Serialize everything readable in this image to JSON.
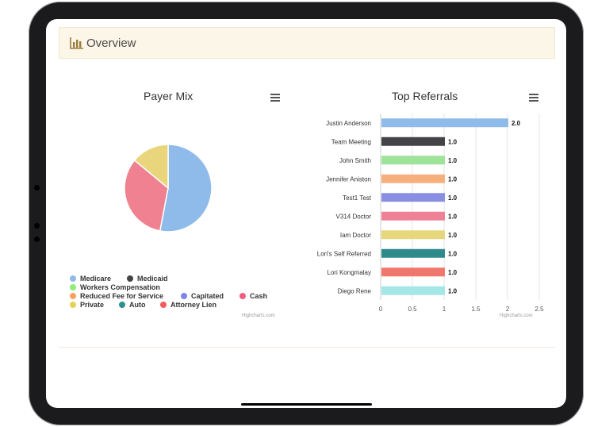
{
  "panel": {
    "title": "Overview",
    "icon": "bar-chart-icon"
  },
  "colors": {
    "medicare": "#8fbbea",
    "medicaid": "#434348",
    "workers_comp": "#90ed7d",
    "reduced_fee": "#f7a35c",
    "capitated": "#8085e9",
    "cash": "#f15c80",
    "private": "#e4d354",
    "auto": "#2b908f",
    "attorney_lien": "#f45b5b",
    "extra": "#91e8e1"
  },
  "chart_data": [
    {
      "type": "pie",
      "title": "Payer Mix",
      "menu_icon": "hamburger-menu-icon",
      "credit": "Highcharts.com",
      "legend": [
        "Medicare",
        "Medicaid",
        "Workers Compensation",
        "Reduced Fee for Service",
        "Capitated",
        "Cash",
        "Private",
        "Auto",
        "Attorney Lien"
      ],
      "slices": [
        {
          "name": "Medicare",
          "value": 53,
          "color": "#8fbbea"
        },
        {
          "name": "Cash",
          "value": 33,
          "color": "#f08190"
        },
        {
          "name": "Private",
          "value": 14,
          "color": "#e9d57c"
        }
      ]
    },
    {
      "type": "bar",
      "orientation": "horizontal",
      "title": "Top Referrals",
      "menu_icon": "hamburger-menu-icon",
      "credit": "Highcharts.com",
      "categories": [
        "Justin Anderson",
        "Team Meeting",
        "John Smith",
        "Jennifer Aniston",
        "Test1 Test",
        "V314 Doctor",
        "Iam Doctor",
        "Lori's Self Referred",
        "Lori Kongmalay",
        "Diego Rene"
      ],
      "values": [
        2.0,
        1.0,
        1.0,
        1.0,
        1.0,
        1.0,
        1.0,
        1.0,
        1.0,
        1.0
      ],
      "data_labels": [
        "2.0",
        "1.0",
        "1.0",
        "1.0",
        "1.0",
        "1.0",
        "1.0",
        "1.0",
        "1.0",
        "1.0"
      ],
      "colors": [
        "#8fbbea",
        "#434348",
        "#9ee39a",
        "#f6b07e",
        "#8a8fe3",
        "#ef8197",
        "#e6d67c",
        "#2f8a8c",
        "#f0776d",
        "#a5e6e6"
      ],
      "xlim": [
        0,
        2.5
      ],
      "ticks": [
        "0",
        "0.5",
        "1",
        "1.5",
        "2",
        "2.5"
      ],
      "grid": true
    }
  ]
}
